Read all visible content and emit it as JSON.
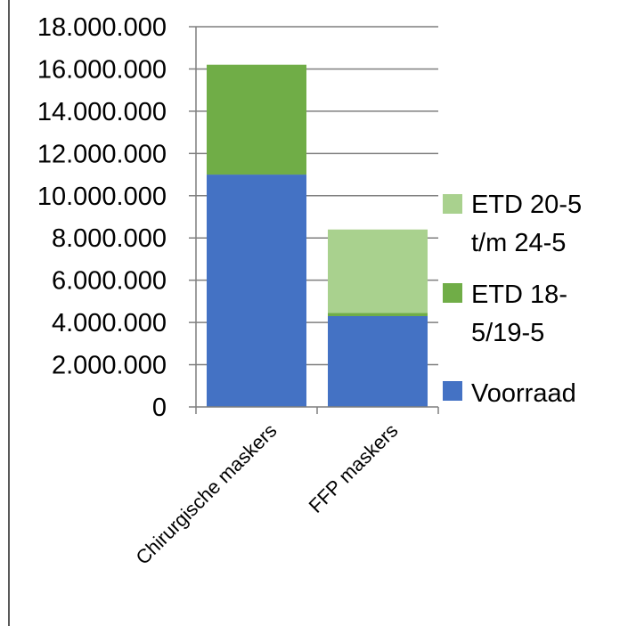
{
  "chart_data": {
    "type": "bar",
    "stacked": true,
    "categories": [
      "Chirurgische maskers",
      "FFP maskers"
    ],
    "series": [
      {
        "name": "Voorraad",
        "values": [
          11000000,
          4300000
        ],
        "color": "#4472C4"
      },
      {
        "name": "ETD 18-5/19-5",
        "values": [
          5200000,
          150000
        ],
        "color": "#70AD47"
      },
      {
        "name": "ETD 20-5 t/m 24-5",
        "values": [
          0,
          3950000
        ],
        "color": "#A9D18E"
      }
    ],
    "legend_labels": [
      {
        "lines": [
          "ETD 20-5",
          "t/m 24-5"
        ],
        "series": 2
      },
      {
        "lines": [
          "ETD 18-",
          "5/19-5"
        ],
        "series": 1
      },
      {
        "lines": [
          "Voorraad"
        ],
        "series": 0
      }
    ],
    "yticks": [
      "0",
      "2.000.000",
      "4.000.000",
      "6.000.000",
      "8.000.000",
      "10.000.000",
      "12.000.000",
      "14.000.000",
      "16.000.000",
      "18.000.000"
    ],
    "ylim": [
      0,
      18000000
    ],
    "ystep": 2000000,
    "grid": true,
    "legend_position": "right",
    "title": "",
    "xlabel": "",
    "ylabel": ""
  }
}
